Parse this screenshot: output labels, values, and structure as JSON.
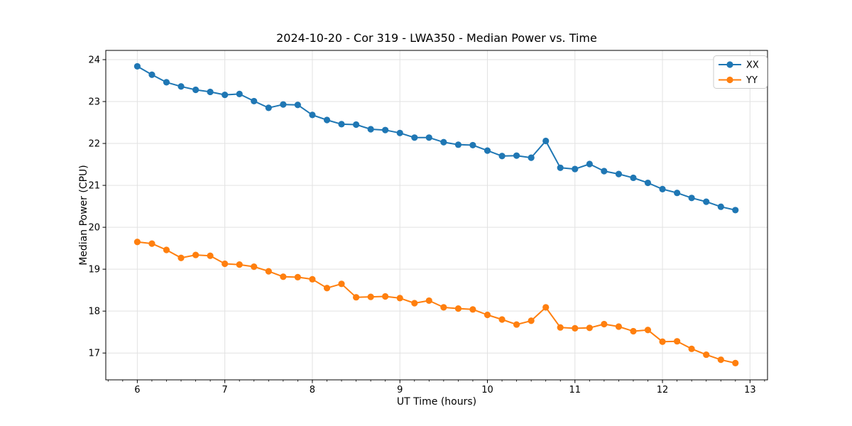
{
  "chart_data": {
    "type": "line",
    "title": "2024-10-20 - Cor 319 - LWA350 - Median Power vs. Time",
    "xlabel": "UT Time (hours)",
    "ylabel": "Median Power (CPU)",
    "xlim": [
      5.64,
      13.2
    ],
    "ylim": [
      16.36,
      24.22
    ],
    "x_ticks": [
      6,
      7,
      8,
      9,
      10,
      11,
      12,
      13
    ],
    "y_ticks": [
      17,
      18,
      19,
      20,
      21,
      22,
      23,
      24
    ],
    "x_minor_tick_step": 0.1666667,
    "grid": true,
    "grid_color": "#e2e2e2",
    "legend_position": "upper right",
    "x": [
      6.0,
      6.167,
      6.333,
      6.5,
      6.667,
      6.833,
      7.0,
      7.167,
      7.333,
      7.5,
      7.667,
      7.833,
      8.0,
      8.167,
      8.333,
      8.5,
      8.667,
      8.833,
      9.0,
      9.167,
      9.333,
      9.5,
      9.667,
      9.833,
      10.0,
      10.167,
      10.333,
      10.5,
      10.667,
      10.833,
      11.0,
      11.167,
      11.333,
      11.5,
      11.667,
      11.833,
      12.0,
      12.167,
      12.333,
      12.5,
      12.667,
      12.833
    ],
    "series": [
      {
        "name": "XX",
        "color": "#1f77b4",
        "values": [
          23.84,
          23.64,
          23.46,
          23.36,
          23.28,
          23.23,
          23.16,
          23.18,
          23.01,
          22.85,
          22.93,
          22.92,
          22.68,
          22.56,
          22.46,
          22.45,
          22.34,
          22.32,
          22.25,
          22.14,
          22.14,
          22.03,
          21.97,
          21.96,
          21.83,
          21.7,
          21.71,
          21.66,
          22.06,
          21.42,
          21.39,
          21.51,
          21.34,
          21.27,
          21.18,
          21.06,
          20.91,
          20.82,
          20.7,
          20.61,
          20.49,
          20.41
        ]
      },
      {
        "name": "YY",
        "color": "#ff7f0e",
        "values": [
          19.65,
          19.61,
          19.46,
          19.27,
          19.34,
          19.32,
          19.13,
          19.11,
          19.06,
          18.95,
          18.82,
          18.81,
          18.76,
          18.55,
          18.65,
          18.33,
          18.34,
          18.35,
          18.31,
          18.19,
          18.25,
          18.09,
          18.06,
          18.04,
          17.91,
          17.8,
          17.68,
          17.77,
          18.09,
          17.61,
          17.59,
          17.6,
          17.69,
          17.63,
          17.52,
          17.55,
          17.27,
          17.28,
          17.1,
          16.96,
          16.84,
          16.76
        ]
      }
    ]
  }
}
